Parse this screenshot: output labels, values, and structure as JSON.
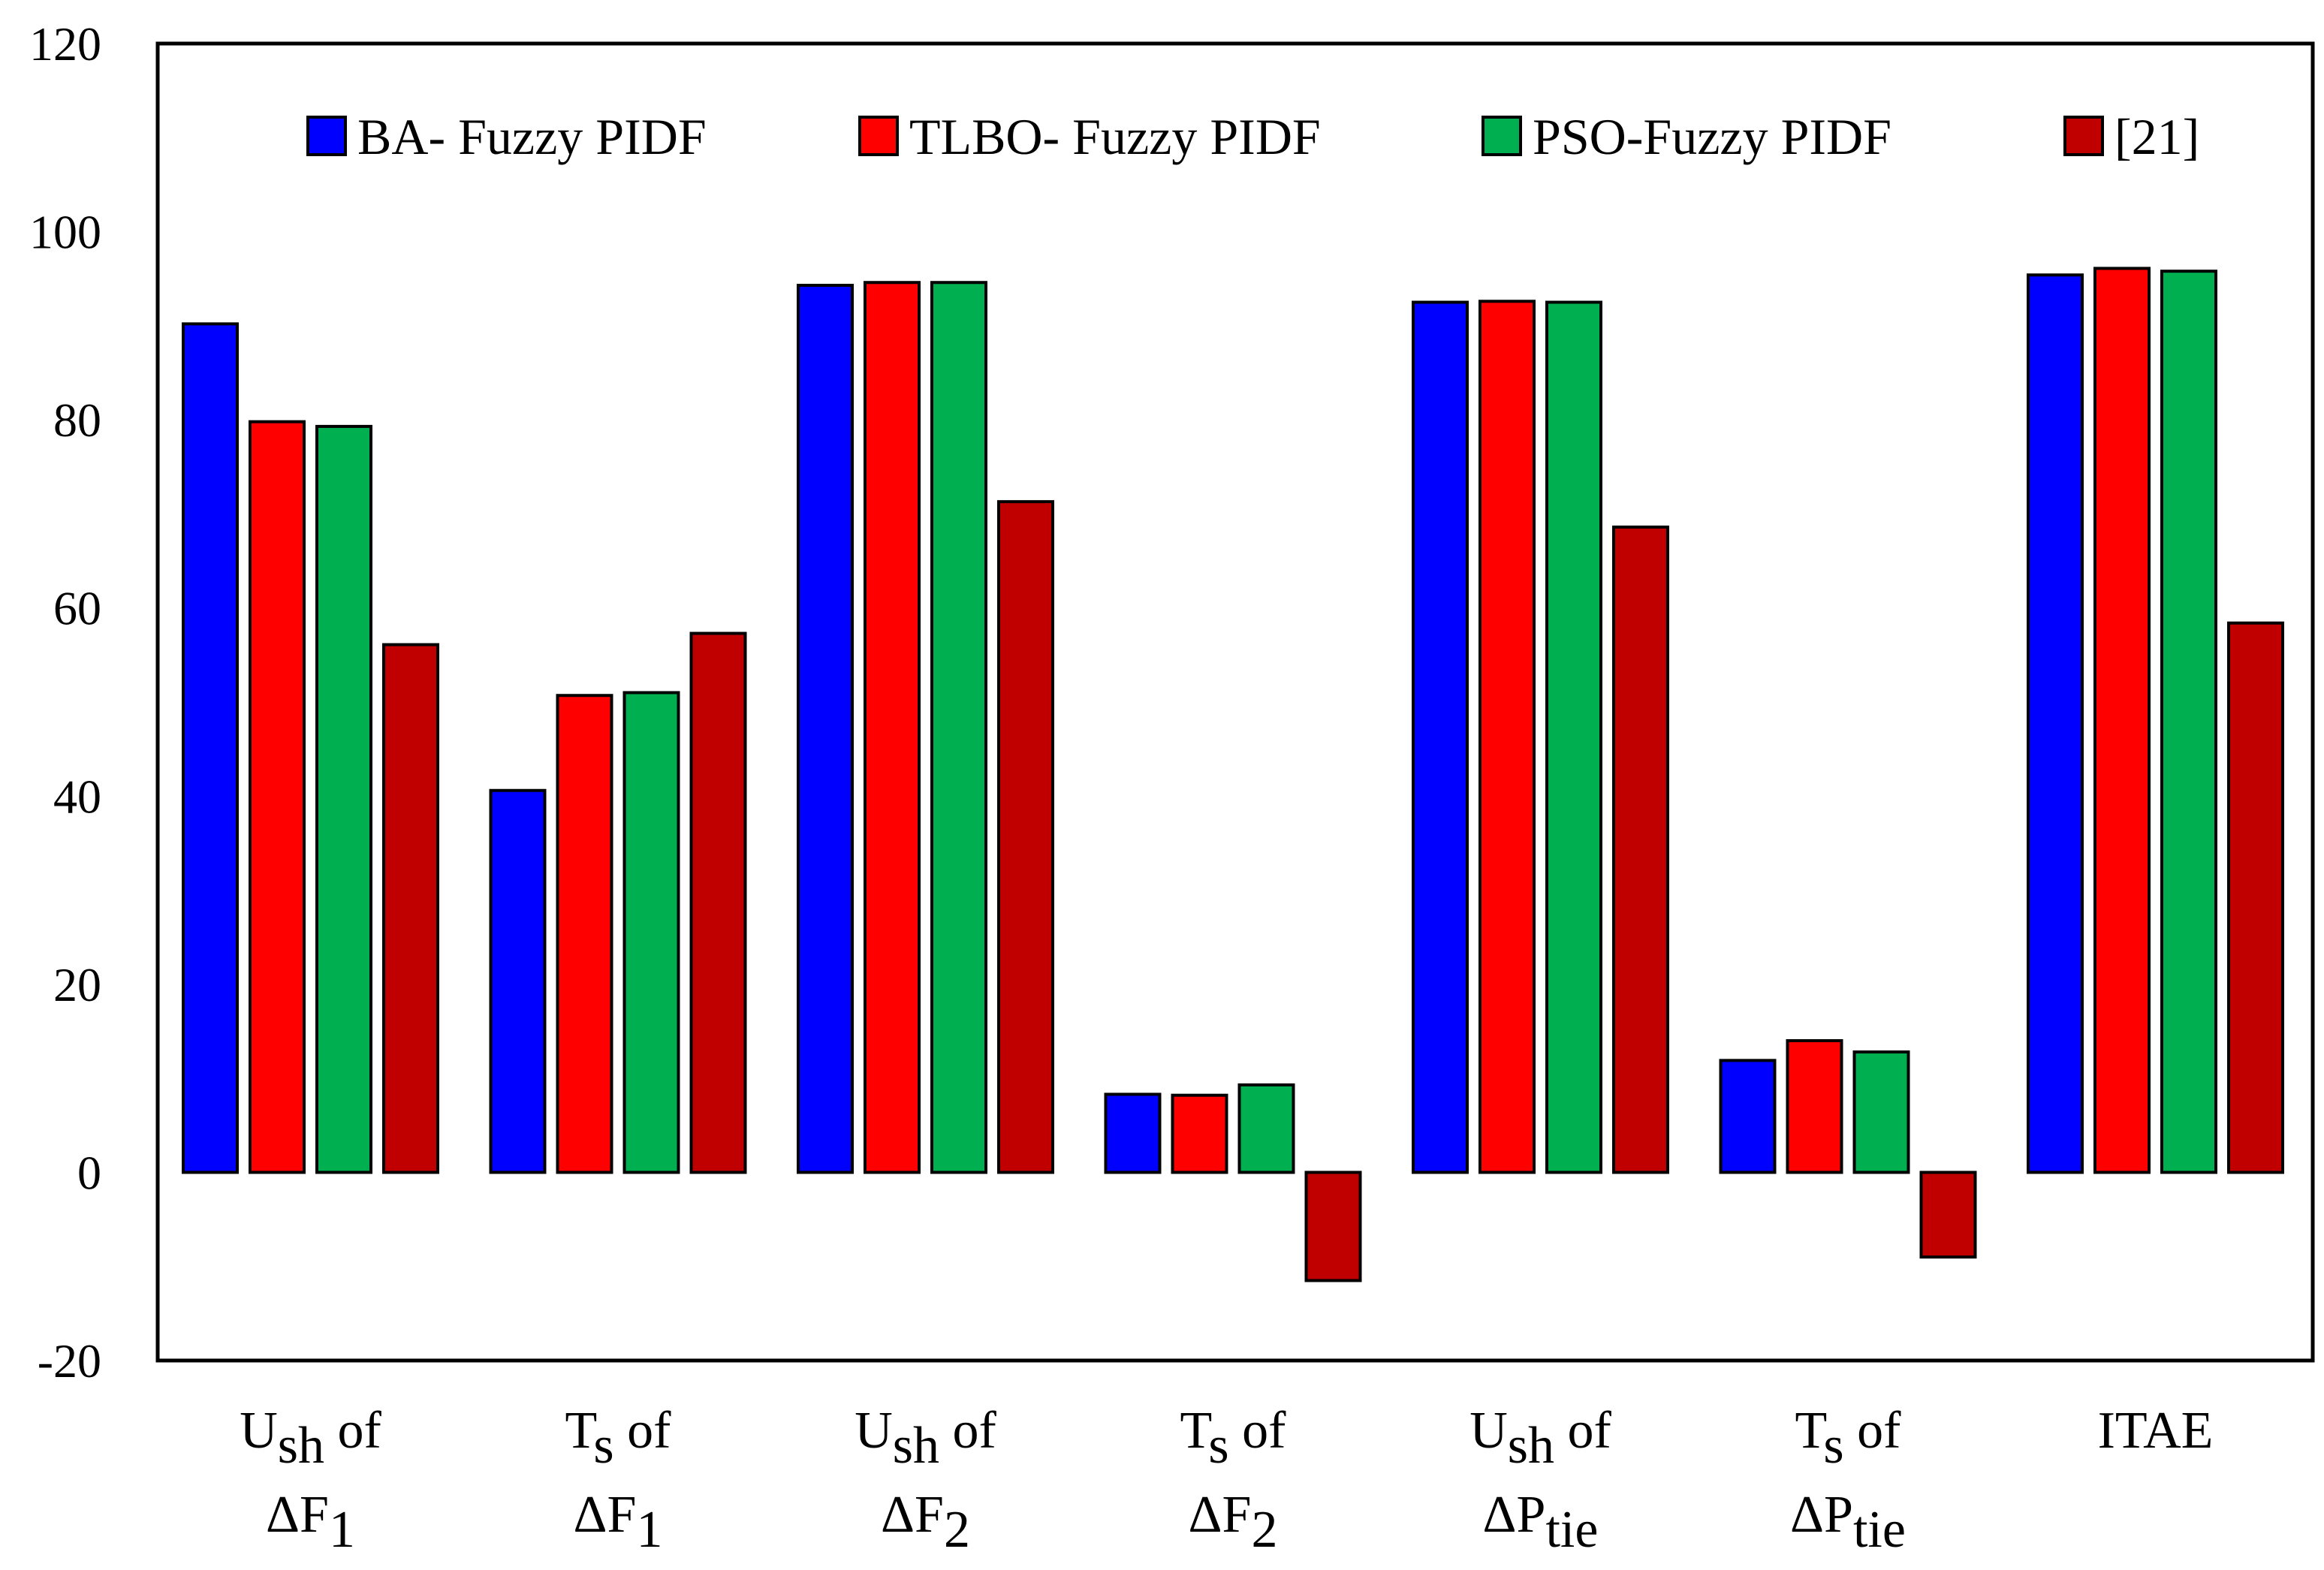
{
  "chart_data": {
    "type": "bar",
    "title": "",
    "xlabel": "",
    "ylabel": "",
    "ylim": [
      -20,
      120
    ],
    "yticks": [
      -20,
      0,
      20,
      40,
      60,
      80,
      100,
      120
    ],
    "grid": false,
    "legend_position": "top",
    "categories": [
      {
        "id": "ush-f1",
        "line1": [
          {
            "t": "U"
          },
          {
            "t": "sh",
            "sub": true
          },
          {
            "t": " of"
          }
        ],
        "line2": [
          {
            "t": "ΔF"
          },
          {
            "t": "1",
            "sub": true
          }
        ]
      },
      {
        "id": "ts-f1",
        "line1": [
          {
            "t": "T"
          },
          {
            "t": "s",
            "sub": true
          },
          {
            "t": " of"
          }
        ],
        "line2": [
          {
            "t": "ΔF"
          },
          {
            "t": "1",
            "sub": true
          }
        ]
      },
      {
        "id": "ush-f2",
        "line1": [
          {
            "t": "U"
          },
          {
            "t": "sh",
            "sub": true
          },
          {
            "t": " of"
          }
        ],
        "line2": [
          {
            "t": "ΔF"
          },
          {
            "t": "2",
            "sub": true
          }
        ]
      },
      {
        "id": "ts-f2",
        "line1": [
          {
            "t": "T"
          },
          {
            "t": "s",
            "sub": true
          },
          {
            "t": " of"
          }
        ],
        "line2": [
          {
            "t": "ΔF"
          },
          {
            "t": "2",
            "sub": true
          }
        ]
      },
      {
        "id": "ush-ptie",
        "line1": [
          {
            "t": "U"
          },
          {
            "t": "sh",
            "sub": true
          },
          {
            "t": " of"
          }
        ],
        "line2": [
          {
            "t": "ΔP"
          },
          {
            "t": "tie",
            "sub": true
          }
        ]
      },
      {
        "id": "ts-ptie",
        "line1": [
          {
            "t": "T"
          },
          {
            "t": "s",
            "sub": true
          },
          {
            "t": " of"
          }
        ],
        "line2": [
          {
            "t": "ΔP"
          },
          {
            "t": "tie",
            "sub": true
          }
        ]
      },
      {
        "id": "itae",
        "line1": [
          {
            "t": "ITAE"
          }
        ],
        "line2": []
      }
    ],
    "series": [
      {
        "name": "BA- Fuzzy PIDF",
        "color": "#0000FF",
        "values": [
          90.2,
          40.6,
          94.3,
          8.3,
          92.5,
          11.9,
          95.4
        ]
      },
      {
        "name": "TLBO- Fuzzy PIDF",
        "color": "#FF0000",
        "values": [
          79.8,
          50.7,
          94.6,
          8.2,
          92.6,
          14.0,
          96.1
        ]
      },
      {
        "name": "PSO-Fuzzy PIDF",
        "color": "#00B050",
        "values": [
          79.3,
          51.0,
          94.6,
          9.3,
          92.5,
          12.8,
          95.8
        ]
      },
      {
        "name": "[21]",
        "color": "#C00000",
        "values": [
          56.1,
          57.3,
          71.3,
          -11.5,
          68.6,
          -9.0,
          58.4
        ]
      }
    ]
  }
}
